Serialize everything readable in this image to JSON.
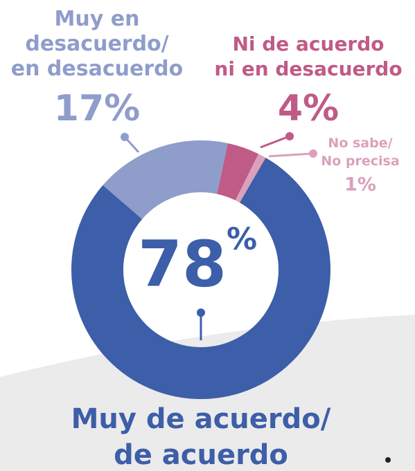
{
  "chart_data": {
    "type": "donut",
    "categories": [
      "Muy en\ndesacuerdo/\nen desacuerdo",
      "Ni de acuerdo\nni en desacuerdo",
      "No sabe/\nNo precisa",
      "Muy de acuerdo/\nde acuerdo"
    ],
    "values": [
      17,
      4,
      1,
      78
    ],
    "value_labels": [
      "17%",
      "4%",
      "1%",
      "78%"
    ],
    "colors": [
      "#8f9dcb",
      "#c05a87",
      "#dba0bb",
      "#3d5ea8"
    ]
  }
}
